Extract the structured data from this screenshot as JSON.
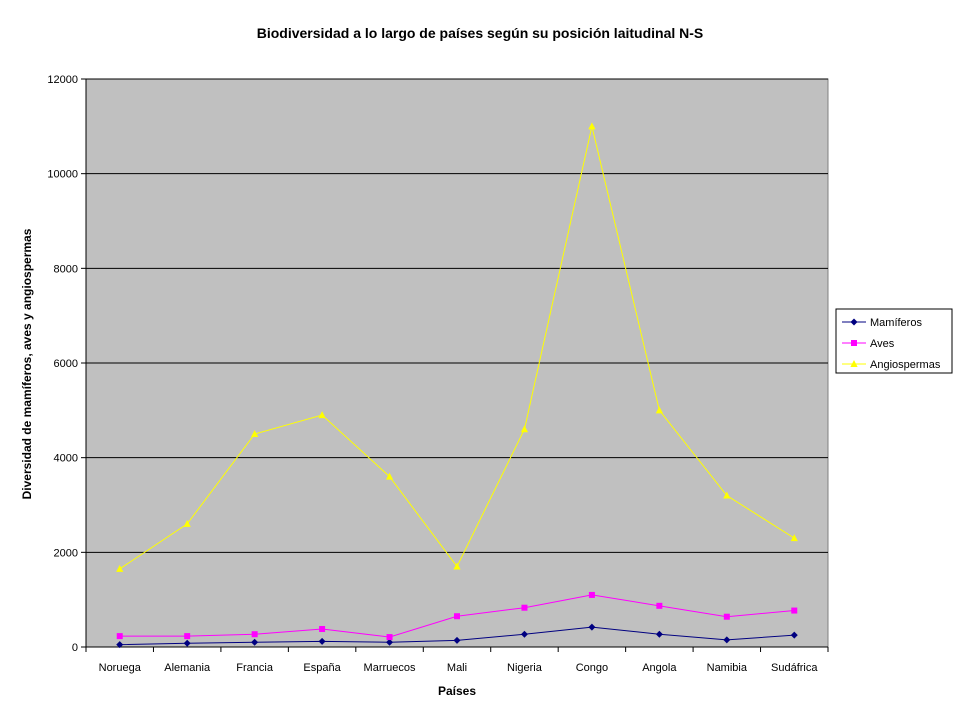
{
  "chart_data": {
    "type": "line",
    "title": "Biodiversidad a lo largo de países según su posición laitudinal N-S",
    "xlabel": "Países",
    "ylabel": "Diversidad de mamíferos, aves y angiospermas",
    "categories": [
      "Noruega",
      "Alemania",
      "Francia",
      "España",
      "Marruecos",
      "Mali",
      "Nigeria",
      "Congo",
      "Angola",
      "Namibia",
      "Sudáfrica"
    ],
    "ylim": [
      0,
      12000
    ],
    "yticks": [
      0,
      2000,
      4000,
      6000,
      8000,
      10000,
      12000
    ],
    "grid": true,
    "legend_position": "right",
    "plot_background": "#c0c0c0",
    "series": [
      {
        "name": "Mamíferos",
        "color": "#000080",
        "marker": "diamond",
        "values": [
          50,
          80,
          100,
          120,
          100,
          140,
          270,
          420,
          270,
          150,
          250
        ]
      },
      {
        "name": "Aves",
        "color": "#ff00ff",
        "marker": "square",
        "values": [
          230,
          230,
          270,
          380,
          210,
          650,
          830,
          1100,
          870,
          640,
          770
        ]
      },
      {
        "name": "Angiospermas",
        "color": "#ffff00",
        "marker": "triangle",
        "values": [
          1650,
          2600,
          4500,
          4900,
          3600,
          1700,
          4600,
          11000,
          5000,
          3200,
          2300
        ]
      }
    ]
  }
}
